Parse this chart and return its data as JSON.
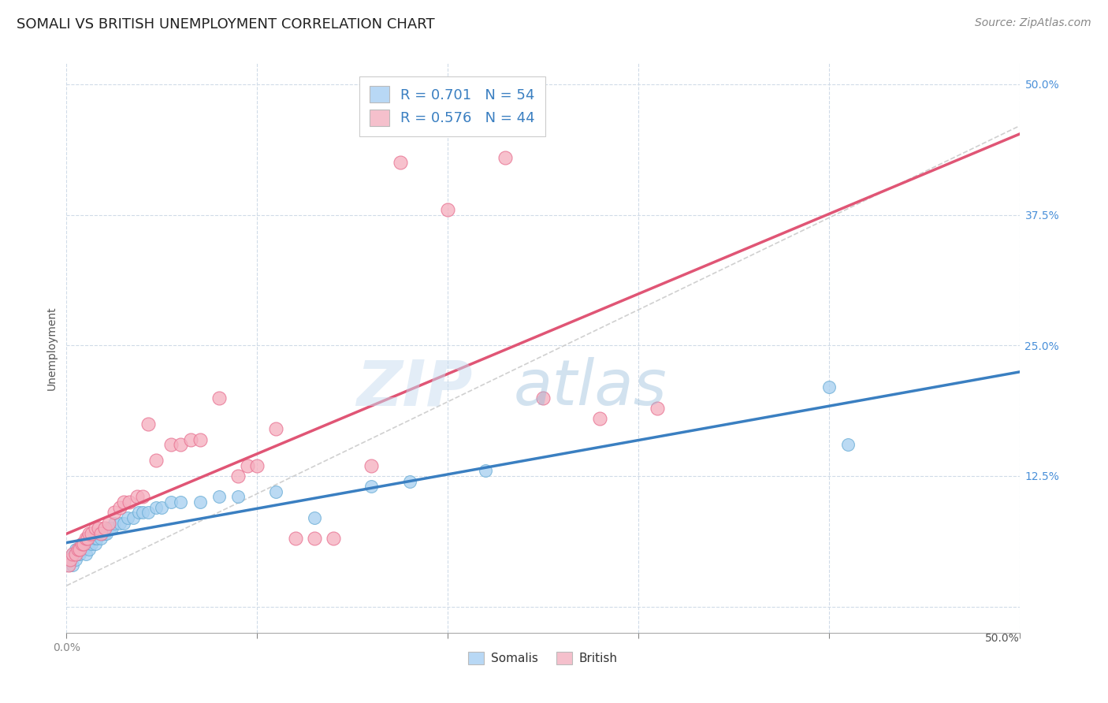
{
  "title": "SOMALI VS BRITISH UNEMPLOYMENT CORRELATION CHART",
  "source": "Source: ZipAtlas.com",
  "ylabel": "Unemployment",
  "x_min": 0.0,
  "x_max": 0.5,
  "y_min": -0.025,
  "y_max": 0.52,
  "y_ticks_right": [
    0.5,
    0.375,
    0.25,
    0.125,
    0.0
  ],
  "y_tick_labels_right": [
    "50.0%",
    "37.5%",
    "25.0%",
    "12.5%",
    ""
  ],
  "somali_color": "#A8D0F0",
  "british_color": "#F5B0C0",
  "somali_edge_color": "#6BAED6",
  "british_edge_color": "#E87090",
  "somali_line_color": "#3A7FC1",
  "british_line_color": "#E05575",
  "diag_line_color": "#C8C8C8",
  "background_color": "#FFFFFF",
  "grid_color": "#D0DBE8",
  "legend_label_1": "R = 0.701   N = 54",
  "legend_label_2": "R = 0.576   N = 44",
  "legend_box_color_1": "#B8D8F5",
  "legend_box_color_2": "#F5C0CC",
  "legend_text_color": "#3A7FC1",
  "watermark_zip": "ZIP",
  "watermark_atlas": "atlas",
  "somali_x": [
    0.001,
    0.002,
    0.003,
    0.003,
    0.004,
    0.005,
    0.005,
    0.006,
    0.006,
    0.007,
    0.007,
    0.008,
    0.008,
    0.009,
    0.01,
    0.01,
    0.011,
    0.012,
    0.012,
    0.013,
    0.014,
    0.015,
    0.015,
    0.016,
    0.017,
    0.018,
    0.019,
    0.02,
    0.021,
    0.022,
    0.023,
    0.024,
    0.025,
    0.028,
    0.03,
    0.032,
    0.035,
    0.038,
    0.04,
    0.043,
    0.047,
    0.05,
    0.055,
    0.06,
    0.07,
    0.08,
    0.09,
    0.11,
    0.13,
    0.16,
    0.18,
    0.22,
    0.4,
    0.41
  ],
  "somali_y": [
    0.04,
    0.045,
    0.04,
    0.05,
    0.05,
    0.045,
    0.055,
    0.05,
    0.055,
    0.05,
    0.055,
    0.055,
    0.06,
    0.055,
    0.05,
    0.06,
    0.06,
    0.055,
    0.065,
    0.06,
    0.065,
    0.06,
    0.065,
    0.065,
    0.07,
    0.065,
    0.07,
    0.07,
    0.07,
    0.075,
    0.075,
    0.075,
    0.08,
    0.08,
    0.08,
    0.085,
    0.085,
    0.09,
    0.09,
    0.09,
    0.095,
    0.095,
    0.1,
    0.1,
    0.1,
    0.105,
    0.105,
    0.11,
    0.085,
    0.115,
    0.12,
    0.13,
    0.21,
    0.155
  ],
  "british_x": [
    0.001,
    0.002,
    0.003,
    0.005,
    0.006,
    0.007,
    0.008,
    0.009,
    0.01,
    0.011,
    0.012,
    0.013,
    0.015,
    0.017,
    0.018,
    0.02,
    0.022,
    0.025,
    0.028,
    0.03,
    0.033,
    0.037,
    0.04,
    0.043,
    0.047,
    0.055,
    0.06,
    0.065,
    0.07,
    0.08,
    0.09,
    0.095,
    0.1,
    0.11,
    0.12,
    0.13,
    0.14,
    0.16,
    0.175,
    0.2,
    0.23,
    0.25,
    0.28,
    0.31
  ],
  "british_y": [
    0.04,
    0.045,
    0.05,
    0.05,
    0.055,
    0.055,
    0.06,
    0.06,
    0.065,
    0.065,
    0.07,
    0.07,
    0.075,
    0.075,
    0.07,
    0.075,
    0.08,
    0.09,
    0.095,
    0.1,
    0.1,
    0.105,
    0.105,
    0.175,
    0.14,
    0.155,
    0.155,
    0.16,
    0.16,
    0.2,
    0.125,
    0.135,
    0.135,
    0.17,
    0.065,
    0.065,
    0.065,
    0.135,
    0.425,
    0.38,
    0.43,
    0.2,
    0.18,
    0.19
  ]
}
